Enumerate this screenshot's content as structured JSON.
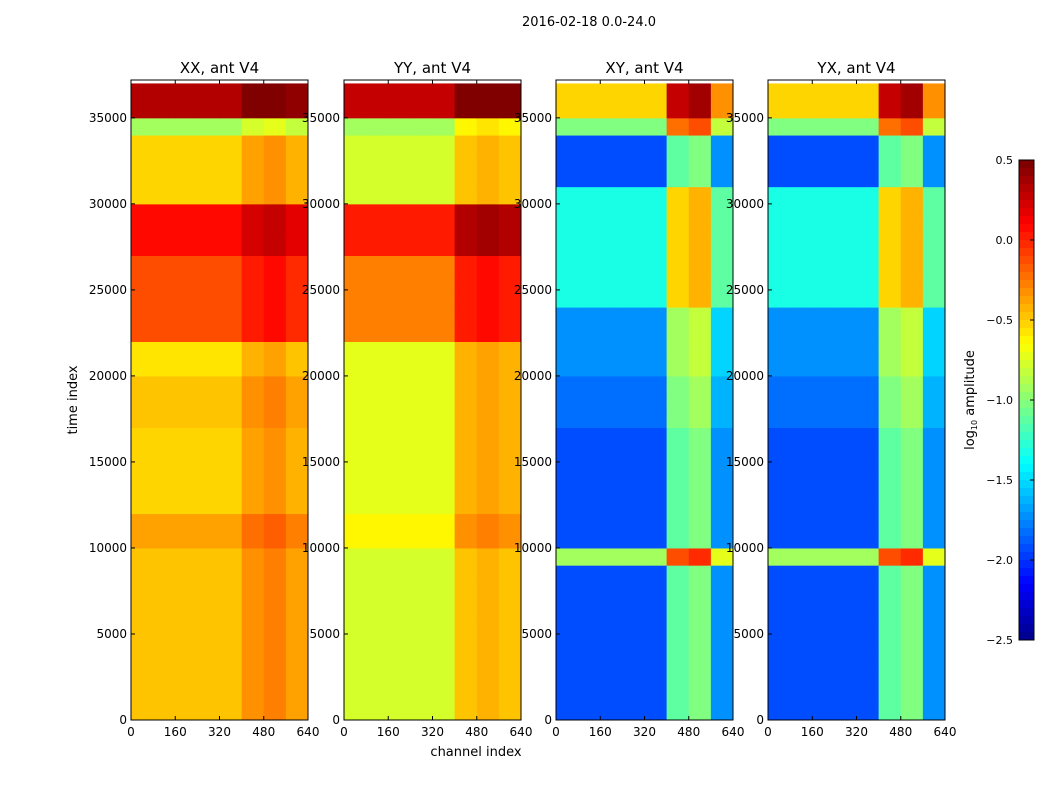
{
  "chart_data": {
    "type": "heatmap",
    "title": "2016-02-18 0.0-24.0",
    "xlabel": "channel index",
    "ylabel": "time index",
    "xlim": [
      0,
      640
    ],
    "ylim": [
      0,
      37200
    ],
    "xticks": [
      0,
      160,
      320,
      480,
      640
    ],
    "yticks": [
      0,
      5000,
      10000,
      15000,
      20000,
      25000,
      30000,
      35000
    ],
    "time_bin_size": 1000,
    "channel_bins": [
      0,
      80,
      160,
      240,
      320,
      400,
      480,
      560,
      640
    ],
    "colorbar": {
      "label": "log10 amplitude",
      "label_main": "log",
      "label_sub": "10",
      "label_rest": " amplitude",
      "range": [
        -2.5,
        0.5
      ],
      "ticks": [
        "0.5",
        "0.0",
        "−0.5",
        "−1.0",
        "−1.5",
        "−2.0",
        "−2.5"
      ],
      "tick_values": [
        0.5,
        0,
        -0.5,
        -1,
        -1.5,
        -2,
        -2.5
      ],
      "colormap": "jet"
    },
    "panels": [
      {
        "title": "XX, ant V4",
        "model": "value = time_base + channel_offset",
        "time_base": [
          -0.45,
          -0.45,
          -0.45,
          -0.45,
          -0.45,
          -0.45,
          -0.45,
          -0.45,
          -0.45,
          -0.45,
          -0.35,
          -0.35,
          -0.5,
          -0.5,
          -0.5,
          -0.5,
          -0.5,
          -0.45,
          -0.45,
          -0.45,
          -0.55,
          -0.55,
          -0.1,
          -0.1,
          -0.1,
          -0.1,
          -0.1,
          0.1,
          0.1,
          0.1,
          -0.5,
          -0.5,
          -0.5,
          -0.5,
          -0.9,
          0.35,
          0.35
        ],
        "channel_offset": [
          0,
          0,
          0,
          0,
          0,
          0.15,
          0.2,
          0.1
        ]
      },
      {
        "title": "YY, ant V4",
        "model": "value = time_base + channel_offset",
        "time_base": [
          -0.75,
          -0.75,
          -0.75,
          -0.75,
          -0.75,
          -0.75,
          -0.75,
          -0.75,
          -0.75,
          -0.75,
          -0.6,
          -0.6,
          -0.7,
          -0.7,
          -0.7,
          -0.7,
          -0.7,
          -0.7,
          -0.7,
          -0.7,
          -0.7,
          -0.7,
          -0.25,
          -0.25,
          -0.25,
          -0.25,
          -0.25,
          0.05,
          0.05,
          0.05,
          -0.75,
          -0.75,
          -0.75,
          -0.75,
          -0.9,
          0.3,
          0.3
        ],
        "channel_offset": [
          0,
          0,
          0,
          0,
          0,
          0.3,
          0.35,
          0.3
        ]
      },
      {
        "title": "XY, ant V4",
        "model": "value = time_base + channel_offset",
        "time_base": [
          -1.9,
          -1.9,
          -1.9,
          -1.9,
          -1.9,
          -1.9,
          -1.9,
          -1.9,
          -1.9,
          -0.9,
          -1.9,
          -1.9,
          -1.9,
          -1.9,
          -1.9,
          -1.9,
          -1.9,
          -1.8,
          -1.8,
          -1.8,
          -1.7,
          -1.7,
          -1.7,
          -1.7,
          -1.3,
          -1.3,
          -1.3,
          -1.3,
          -1.3,
          -1.3,
          -1.3,
          -1.9,
          -1.9,
          -1.9,
          -1.0,
          -0.5,
          -0.5
        ],
        "channel_offset": [
          0,
          0,
          0,
          0,
          0,
          0.8,
          0.9,
          0.2
        ]
      },
      {
        "title": "YX, ant V4",
        "model": "value = time_base + channel_offset",
        "time_base": [
          -1.9,
          -1.9,
          -1.9,
          -1.9,
          -1.9,
          -1.9,
          -1.9,
          -1.9,
          -1.9,
          -0.9,
          -1.9,
          -1.9,
          -1.9,
          -1.9,
          -1.9,
          -1.9,
          -1.9,
          -1.8,
          -1.8,
          -1.8,
          -1.7,
          -1.7,
          -1.7,
          -1.7,
          -1.3,
          -1.3,
          -1.3,
          -1.3,
          -1.3,
          -1.3,
          -1.3,
          -1.9,
          -1.9,
          -1.9,
          -1.0,
          -0.5,
          -0.5
        ],
        "channel_offset": [
          0,
          0,
          0,
          0,
          0,
          0.8,
          0.9,
          0.2
        ]
      }
    ]
  }
}
